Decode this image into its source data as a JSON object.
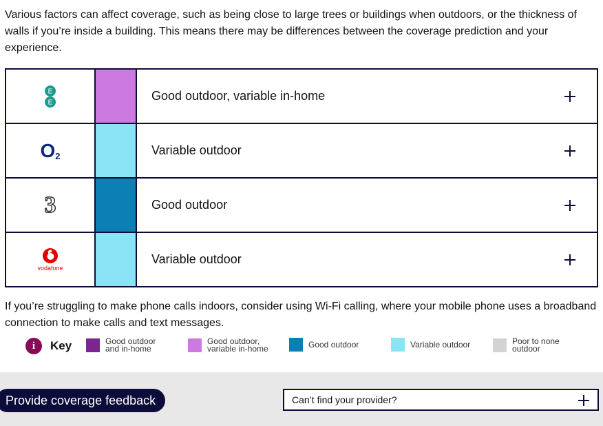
{
  "intro": "Various factors can affect coverage, such as being close to large trees or buildings when outdoors, or the thickness of walls if you’re inside a building. This means there may be differences between the coverage prediction and your experience.",
  "providers": [
    {
      "logo": "ee-logo",
      "coverage": "Good outdoor, variable in-home",
      "color": "#cc7ae0"
    },
    {
      "logo": "o2-logo",
      "logo_text": "O",
      "logo_sub": "2",
      "coverage": "Variable outdoor",
      "color": "#8ae4f5"
    },
    {
      "logo": "three-logo",
      "logo_text": "3",
      "coverage": "Good outdoor",
      "color": "#0b80b4"
    },
    {
      "logo": "vodafone-logo",
      "logo_text": "vodafone",
      "coverage": "Variable outdoor",
      "color": "#8ae4f5"
    }
  ],
  "wifi_note": "If you’re struggling to make phone calls indoors, consider using Wi-Fi calling, where your mobile phone uses a broadband connection to make calls and text messages.",
  "key": {
    "icon_text": "i",
    "title": "Key",
    "items": [
      {
        "label": "Good outdoor and in-home",
        "color": "#7b2591"
      },
      {
        "label": "Good outdoor, variable in-home",
        "color": "#cc7ae0"
      },
      {
        "label": "Good outdoor",
        "color": "#0b80b4"
      },
      {
        "label": "Variable outdoor",
        "color": "#8ae4f5"
      },
      {
        "label": "Poor to none outdoor",
        "color": "#d3d3d3"
      }
    ]
  },
  "footer": {
    "feedback_label": "Provide coverage feedback",
    "provider_label": "Can’t find your provider?"
  }
}
